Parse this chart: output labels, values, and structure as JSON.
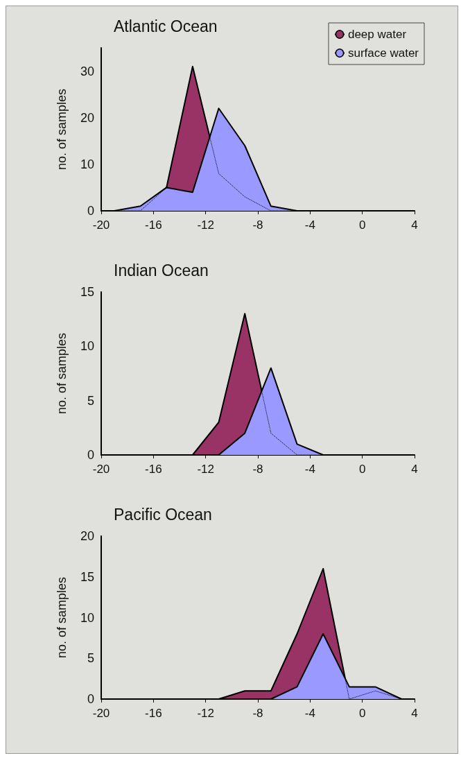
{
  "chart_data": [
    {
      "type": "area",
      "title": "Atlantic Ocean",
      "ylabel": "no. of samples",
      "x": [
        -19,
        -17,
        -15,
        -13,
        -11,
        -9,
        -7,
        -5,
        -3,
        -1,
        1,
        3
      ],
      "series": [
        {
          "name": "deep water",
          "color": "#993366",
          "values": [
            0,
            0,
            5,
            31,
            8,
            3,
            0,
            0,
            0,
            0,
            0,
            0
          ]
        },
        {
          "name": "surface water",
          "color": "#9999ff",
          "values": [
            0,
            1,
            5,
            4,
            22,
            14,
            1,
            0,
            0,
            0,
            0,
            0
          ]
        }
      ],
      "xlim": [
        -20,
        4
      ],
      "xticks": [
        -20,
        -16,
        -12,
        -8,
        -4,
        0,
        4
      ],
      "ylim": [
        0,
        35
      ],
      "yticks": [
        0,
        10,
        20,
        30
      ],
      "grid": false,
      "legend": "top right"
    },
    {
      "type": "area",
      "title": "Indian Ocean",
      "ylabel": "no. of samples",
      "x": [
        -19,
        -17,
        -15,
        -13,
        -11,
        -9,
        -7,
        -5,
        -3,
        -1,
        1,
        3
      ],
      "series": [
        {
          "color": "#993366",
          "values": [
            0,
            0,
            0,
            0,
            3,
            13,
            2,
            0,
            0,
            0,
            0,
            0
          ]
        },
        {
          "color": "#9999ff",
          "values": [
            0,
            0,
            0,
            0,
            0,
            2,
            8,
            1,
            0,
            0,
            0,
            0
          ]
        }
      ],
      "xlim": [
        -20,
        4
      ],
      "xticks": [
        -20,
        -16,
        -12,
        -8,
        -4,
        0,
        4
      ],
      "ylim": [
        0,
        15
      ],
      "yticks": [
        0,
        5,
        10,
        15
      ],
      "grid": false,
      "legend": false
    },
    {
      "type": "area",
      "title": "Pacific Ocean",
      "ylabel": "no. of samples",
      "x": [
        -19,
        -17,
        -15,
        -13,
        -11,
        -9,
        -7,
        -5,
        -3,
        -1,
        1,
        3
      ],
      "series": [
        {
          "color": "#993366",
          "values": [
            0,
            0,
            0,
            0,
            0,
            1,
            1,
            8,
            16,
            0,
            1,
            0
          ]
        },
        {
          "color": "#9999ff",
          "values": [
            0,
            0,
            0,
            0,
            0,
            0,
            0,
            1.5,
            8,
            1.5,
            1.5,
            0
          ]
        }
      ],
      "xlim": [
        -20,
        4
      ],
      "xticks": [
        -20,
        -16,
        -12,
        -8,
        -4,
        0,
        4
      ],
      "ylim": [
        0,
        20
      ],
      "yticks": [
        0,
        5,
        10,
        15,
        20
      ],
      "grid": false,
      "legend": false
    }
  ]
}
